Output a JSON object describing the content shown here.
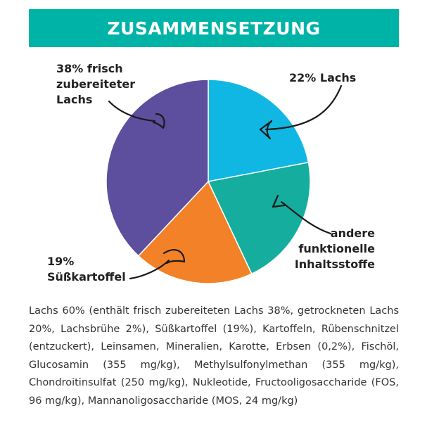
{
  "title": "ZUSAMMENSETZUNG",
  "chart_data": {
    "type": "pie",
    "slices": [
      {
        "label_lines": [
          "22% Lachs"
        ],
        "value": 22,
        "color": "#11b7e3"
      },
      {
        "label_lines": [
          "andere",
          "funktionelle",
          "Inhaltsstoffe"
        ],
        "value": 21,
        "color": "#15ad9d"
      },
      {
        "label_lines": [
          "19%",
          "Süßkartoffel"
        ],
        "value": 19,
        "color": "#f28128"
      },
      {
        "label_lines": [
          "38% frisch",
          "zubereiteter",
          "Lachs"
        ],
        "value": 38,
        "color": "#5d4f9d"
      }
    ]
  },
  "description": "Lachs 60% (enthält frisch zubereiteten Lachs 38%, getrockneten Lachs 20%, Lachsbrühe 2%), Süßkartoffel (19%), Kartoffeln, Rübenschnitzel (entzuckert), Leinsamen, Mineralien, Karotte, Erbsen (0,2%), Fischöl, Glucosamin (355 mg/kg), Methylsulfonylmethan (355 mg/kg), Chondroitinsulfat (250 mg/kg), Nukleotide, Fructooligosaccharide (FOS, 96 mg/kg), Mannanoligosaccharide (MOS, 24 mg/kg)"
}
